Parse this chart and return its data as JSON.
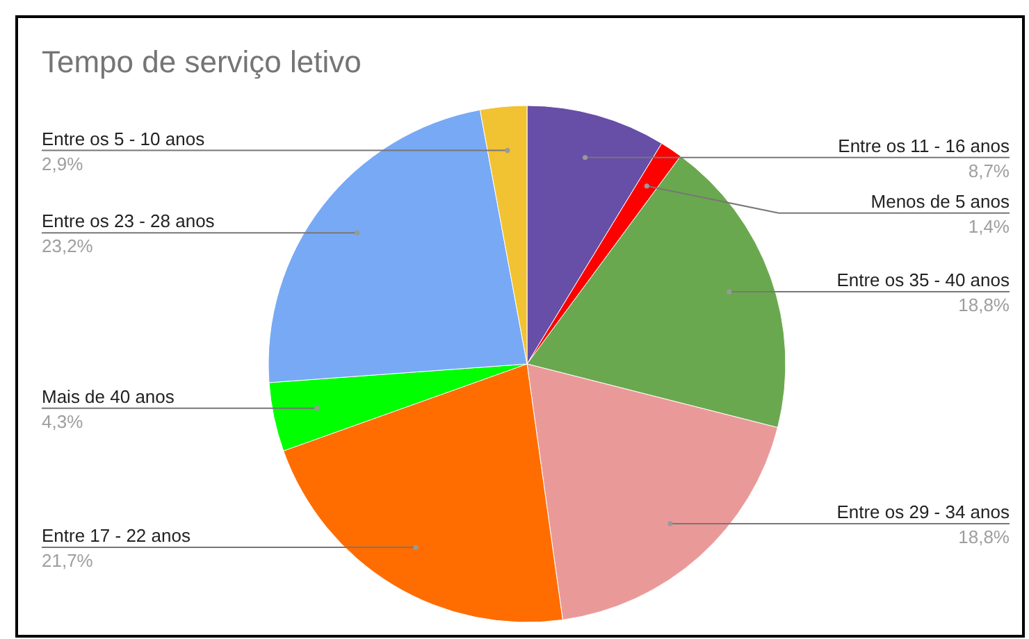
{
  "chart_data": {
    "type": "pie",
    "title": "Tempo de serviço letivo",
    "categories": [
      "Entre os 11 - 16 anos",
      "Menos de 5 anos",
      "Entre os 35 - 40 anos",
      "Entre os 29 - 34 anos",
      "Entre 17 - 22 anos",
      "Mais de 40 anos",
      "Entre os 23 - 28 anos",
      "Entre os 5 - 10 anos"
    ],
    "values": [
      8.7,
      1.4,
      18.8,
      18.8,
      21.7,
      4.3,
      23.2,
      2.9
    ],
    "value_labels": [
      "8,7%",
      "1,4%",
      "18,8%",
      "18,8%",
      "21,7%",
      "4,3%",
      "23,2%",
      "2,9%"
    ],
    "colors": [
      "#674ea7",
      "#ff0000",
      "#6aa84f",
      "#ea9999",
      "#ff6d01",
      "#00ff00",
      "#78a9f5",
      "#f1c232"
    ],
    "legend": false
  }
}
